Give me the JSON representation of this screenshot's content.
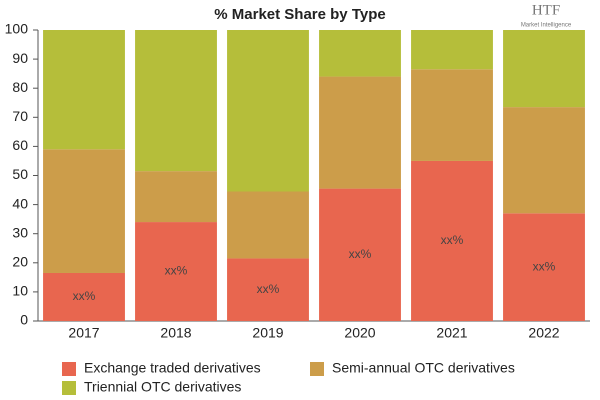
{
  "chart_data": {
    "type": "stacked_bar",
    "title": "% Market Share by Type",
    "logo": {
      "text": "HTF",
      "subtext": "Market Intelligence"
    },
    "categories": [
      "2017",
      "2018",
      "2019",
      "2020",
      "2021",
      "2022"
    ],
    "series": [
      {
        "name": "Exchange traded derivatives",
        "color": "#e8664f",
        "values": [
          16.5,
          34,
          21.5,
          45.5,
          55,
          37
        ]
      },
      {
        "name": "Semi-annual OTC derivatives",
        "color": "#cc9d4a",
        "values": [
          42.5,
          17.5,
          23,
          38.5,
          31.5,
          36.5
        ]
      },
      {
        "name": "Triennial OTC derivatives",
        "color": "#b5be3a",
        "values": [
          41,
          48.5,
          55.5,
          16,
          13.5,
          26.5
        ]
      }
    ],
    "data_labels": [
      "xx%",
      "xx%",
      "xx%",
      "xx%",
      "xx%",
      "xx%"
    ],
    "ylim": [
      0,
      100
    ],
    "yticks": [
      0,
      10,
      20,
      30,
      40,
      50,
      60,
      70,
      80,
      90,
      100
    ],
    "grid": false
  }
}
